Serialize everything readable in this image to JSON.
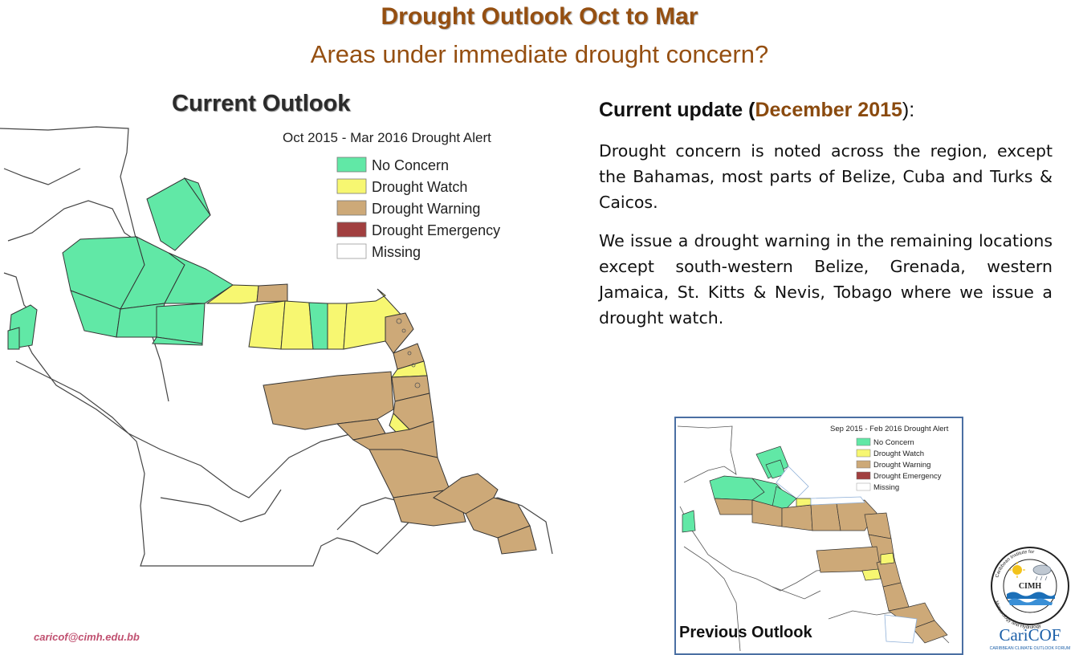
{
  "header": {
    "title": "Drought Outlook Oct to Mar",
    "subtitle": "Areas under immediate drought concern?"
  },
  "current_map": {
    "label": "Current Outlook",
    "map_title": "Oct 2015 - Mar 2016 Drought Alert",
    "legend": [
      {
        "label": "No Concern",
        "color": "#61E8A6"
      },
      {
        "label": "Drought Watch",
        "color": "#F7F771"
      },
      {
        "label": "Drought Warning",
        "color": "#CDA978"
      },
      {
        "label": "Drought Emergency",
        "color": "#A13F3F"
      },
      {
        "label": "Missing",
        "color": "#FFFFFF"
      }
    ]
  },
  "update": {
    "prefix": "Current update (",
    "date": "December 2015",
    "suffix": "):",
    "paragraph1": "Drought concern is noted across the region, except the Bahamas, most parts of Belize, Cuba and Turks & Caicos.",
    "paragraph2": "We issue a drought warning in the remaining locations except south-western Belize, Grenada, western Jamaica, St. Kitts & Nevis, Tobago where we issue a drought watch."
  },
  "previous_map": {
    "label": "Previous Outlook",
    "map_title": "Sep 2015 - Feb 2016 Drought Alert",
    "legend": [
      {
        "label": "No Concern",
        "color": "#61E8A6"
      },
      {
        "label": "Drought Watch",
        "color": "#F7F771"
      },
      {
        "label": "Drought Warning",
        "color": "#CDA978"
      },
      {
        "label": "Drought Emergency",
        "color": "#A13F3F"
      },
      {
        "label": "Missing",
        "color": "#FFFFFF"
      }
    ]
  },
  "logo": {
    "ring_text_top": "Caribbean Institute for",
    "ring_text_bottom": "Meteorology and Hydrology",
    "center_text": "CIMH",
    "wordmark": "CariCOF",
    "tagline": "CARIBBEAN CLIMATE OUTLOOK FORUM"
  },
  "footer": {
    "email": "caricof@cimh.edu.bb"
  }
}
